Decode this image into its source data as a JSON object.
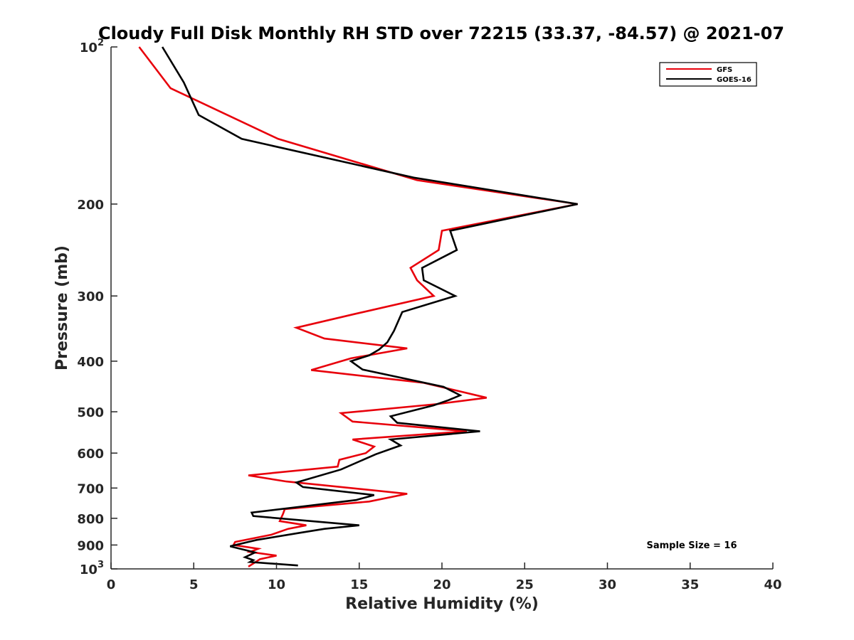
{
  "chart_data": {
    "type": "line",
    "title": "Cloudy Full Disk Monthly RH STD over 72215 (33.37, -84.57) @ 2021-07",
    "xlabel": "Relative Humidity (%)",
    "ylabel": "Pressure (mb)",
    "xlim": [
      0,
      40
    ],
    "ylim": [
      100,
      1000
    ],
    "y_scale": "log",
    "y_reversed": true,
    "x_ticks": [
      "0",
      "5",
      "10",
      "15",
      "20",
      "25",
      "30",
      "35",
      "40"
    ],
    "y_ticks": [
      {
        "value": 100,
        "base": "10",
        "exp": "2"
      },
      {
        "value": 200,
        "label": "200"
      },
      {
        "value": 300,
        "label": "300"
      },
      {
        "value": 400,
        "label": "400"
      },
      {
        "value": 500,
        "label": "500"
      },
      {
        "value": 600,
        "label": "600"
      },
      {
        "value": 700,
        "label": "700"
      },
      {
        "value": 800,
        "label": "800"
      },
      {
        "value": 900,
        "label": "900"
      },
      {
        "value": 1000,
        "base": "10",
        "exp": "3"
      }
    ],
    "legend_position": "top-right",
    "grid": false,
    "annotation": "Sample Size = 16",
    "series": [
      {
        "name": "GFS",
        "color": "#e8000b",
        "points": [
          [
            1.7,
            100
          ],
          [
            3.6,
            120
          ],
          [
            10.1,
            150
          ],
          [
            18.5,
            180
          ],
          [
            28.2,
            200
          ],
          [
            20.0,
            225
          ],
          [
            19.8,
            245
          ],
          [
            18.1,
            265
          ],
          [
            18.5,
            280
          ],
          [
            19.5,
            300
          ],
          [
            14.7,
            325
          ],
          [
            11.2,
            345
          ],
          [
            12.9,
            362
          ],
          [
            17.9,
            378
          ],
          [
            14.5,
            395
          ],
          [
            12.1,
            416
          ],
          [
            18.9,
            440
          ],
          [
            22.7,
            470
          ],
          [
            19.8,
            483
          ],
          [
            13.9,
            503
          ],
          [
            14.6,
            522
          ],
          [
            21.5,
            545
          ],
          [
            14.6,
            565
          ],
          [
            15.9,
            583
          ],
          [
            15.4,
            600
          ],
          [
            13.8,
            618
          ],
          [
            13.7,
            637
          ],
          [
            8.3,
            662
          ],
          [
            10.6,
            680
          ],
          [
            17.9,
            718
          ],
          [
            15.6,
            743
          ],
          [
            10.5,
            768
          ],
          [
            10.4,
            784
          ],
          [
            10.2,
            810
          ],
          [
            11.8,
            825
          ],
          [
            10.7,
            838
          ],
          [
            9.7,
            860
          ],
          [
            7.5,
            888
          ],
          [
            7.4,
            900
          ],
          [
            8.9,
            915
          ],
          [
            8.4,
            928
          ],
          [
            10.0,
            943
          ],
          [
            9.0,
            958
          ],
          [
            8.7,
            972
          ],
          [
            8.3,
            990
          ]
        ]
      },
      {
        "name": "GOES-16",
        "color": "#000000",
        "points": [
          [
            3.1,
            100
          ],
          [
            4.4,
            117
          ],
          [
            5.3,
            135
          ],
          [
            7.9,
            150
          ],
          [
            18.3,
            178
          ],
          [
            28.2,
            200
          ],
          [
            20.5,
            225
          ],
          [
            20.9,
            245
          ],
          [
            18.8,
            265
          ],
          [
            18.9,
            280
          ],
          [
            20.8,
            300
          ],
          [
            17.6,
            322
          ],
          [
            17.1,
            350
          ],
          [
            16.7,
            368
          ],
          [
            16.2,
            380
          ],
          [
            15.6,
            390
          ],
          [
            14.5,
            400
          ],
          [
            15.2,
            415
          ],
          [
            20.1,
            448
          ],
          [
            21.1,
            465
          ],
          [
            20.4,
            475
          ],
          [
            19.5,
            486
          ],
          [
            16.9,
            510
          ],
          [
            17.3,
            525
          ],
          [
            22.3,
            545
          ],
          [
            16.9,
            565
          ],
          [
            17.5,
            580
          ],
          [
            16.0,
            603
          ],
          [
            13.9,
            645
          ],
          [
            11.2,
            683
          ],
          [
            11.6,
            697
          ],
          [
            15.9,
            722
          ],
          [
            14.8,
            738
          ],
          [
            8.5,
            780
          ],
          [
            8.6,
            792
          ],
          [
            15.0,
            825
          ],
          [
            12.9,
            838
          ],
          [
            11.4,
            853
          ],
          [
            8.8,
            880
          ],
          [
            7.2,
            905
          ],
          [
            8.7,
            930
          ],
          [
            8.1,
            950
          ],
          [
            8.6,
            962
          ],
          [
            8.4,
            970
          ],
          [
            11.3,
            985
          ]
        ]
      }
    ]
  }
}
